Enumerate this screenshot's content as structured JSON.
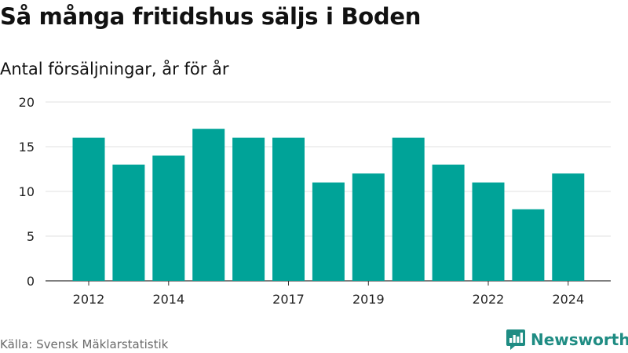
{
  "chart_data": {
    "type": "bar",
    "title": "Så många fritidshus säljs i Boden",
    "subtitle": "Antal försäljningar, år för år",
    "x": [
      2012,
      2013,
      2014,
      2015,
      2016,
      2017,
      2018,
      2019,
      2020,
      2021,
      2022,
      2023,
      2024
    ],
    "values": [
      16,
      13,
      14,
      17,
      16,
      16,
      11,
      12,
      16,
      13,
      11,
      8,
      12
    ],
    "ylim": [
      0,
      20
    ],
    "yticks": [
      "0",
      "5",
      "10",
      "15",
      "20"
    ],
    "xticks": [
      "2012",
      "2014",
      "2017",
      "2019",
      "2022",
      "2024"
    ],
    "grid": true,
    "bar_color": "#00a398"
  },
  "footer": {
    "source": "Källa: Svensk Mäklarstatistik",
    "brand": "Newsworthy",
    "brand_icon": "newsworthy-logo-icon",
    "brand_color": "#1f8c83"
  }
}
